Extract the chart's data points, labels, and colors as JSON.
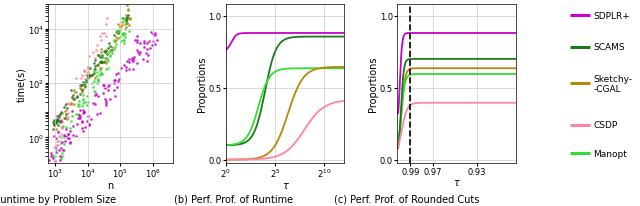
{
  "colors": {
    "SDPLR+": "#CC00CC",
    "SCAMS": "#1A7A1A",
    "Sketchy-CGAL": "#B8860B",
    "CSDP": "#FF85A2",
    "Manopt": "#33DD33"
  },
  "subplot_a_title": "(a) Runtime by Problem Size",
  "subplot_b_title": "(b) Perf. Prof. of Runtime",
  "subplot_c_title": "(c) Perf. Prof. of Rounded Cuts",
  "xlabel_a": "n",
  "xlabel_b": "τ",
  "xlabel_c": "τ",
  "ylabel_a": "time(s)",
  "ylabel_bc": "Proportions",
  "background": "#ffffff",
  "grid_color": "#cccccc",
  "methods": [
    "SDPLR+",
    "SCAMS",
    "Sketchy-CGAL",
    "CSDP",
    "Manopt"
  ],
  "dashed_line_x": 0.99,
  "scatter_plot_order": [
    "CSDP",
    "Sketchy-CGAL",
    "SCAMS",
    "Manopt",
    "SDPLR+"
  ],
  "perf_b_order": [
    "SDPLR+",
    "SCAMS",
    "Manopt",
    "Sketchy-CGAL",
    "CSDP"
  ],
  "perf_c_order": [
    "SDPLR+",
    "Sketchy-CGAL",
    "Manopt",
    "SCAMS",
    "CSDP"
  ]
}
